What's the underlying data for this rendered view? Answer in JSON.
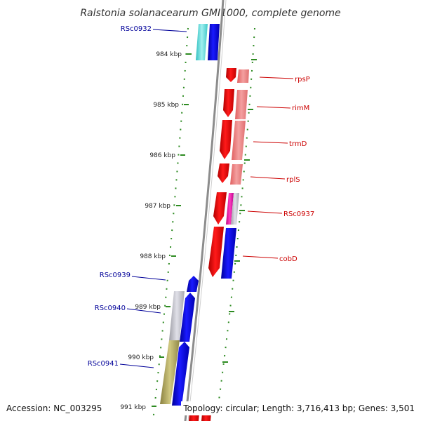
{
  "title": "Ralstonia solanacearum GMI1000, complete genome",
  "footer": {
    "accession": "Accession: NC_003295",
    "topology": "Topology: circular; Length: 3,716,413 bp; Genes: 3,501"
  },
  "colors": {
    "forward_strand": "#e00000",
    "reverse_strand": "#0000e0",
    "label_forward": "#cc0000",
    "label_reverse": "#000099",
    "rule": "#2e8b22",
    "backbone": "#8c8c8c"
  },
  "kbp_ticks": [
    "984 kbp",
    "985 kbp",
    "986 kbp",
    "987 kbp",
    "988 kbp",
    "989 kbp",
    "990 kbp",
    "991 kbp"
  ],
  "genes": [
    {
      "label": "RSc0932",
      "strand": "reverse",
      "color": "blue",
      "assoc": "cyan"
    },
    {
      "label": "rpsP",
      "strand": "forward",
      "color": "red",
      "assoc": "pink"
    },
    {
      "label": "rimM",
      "strand": "forward",
      "color": "red",
      "assoc": "pink"
    },
    {
      "label": "trmD",
      "strand": "forward",
      "color": "red",
      "assoc": "pink"
    },
    {
      "label": "rplS",
      "strand": "forward",
      "color": "red",
      "assoc": "pink"
    },
    {
      "label": "RSc0937",
      "strand": "forward",
      "color": "red",
      "assoc": "magenta"
    },
    {
      "label": "cobD",
      "strand": "forward",
      "color": "red",
      "assoc": "blue"
    },
    {
      "label": "RSc0939",
      "strand": "reverse",
      "color": "blue",
      "assoc": "none"
    },
    {
      "label": "RSc0940",
      "strand": "reverse",
      "color": "blue",
      "assoc": "grey"
    },
    {
      "label": "RSc0941",
      "strand": "reverse",
      "color": "blue",
      "assoc": "olive"
    }
  ]
}
